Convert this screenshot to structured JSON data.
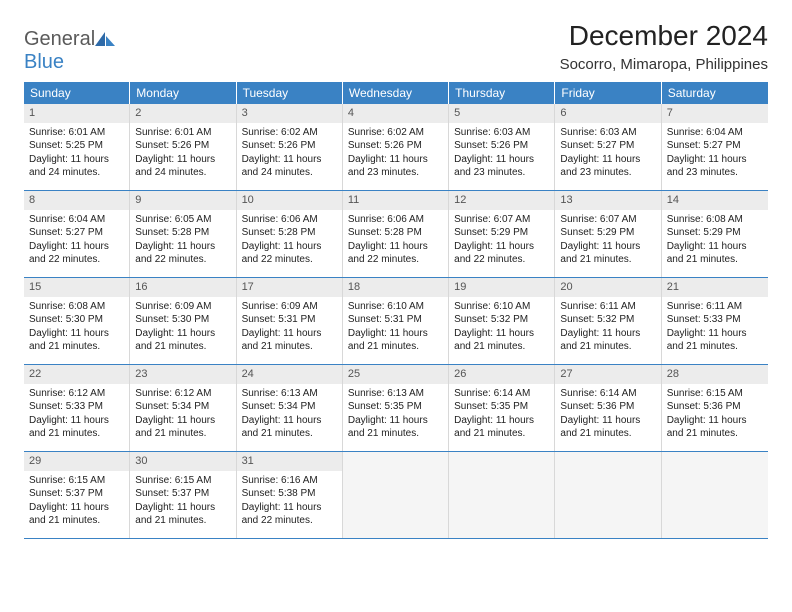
{
  "brand": {
    "general": "General",
    "blue": "Blue"
  },
  "title": "December 2024",
  "location": "Socorro, Mimaropa, Philippines",
  "header_bg": "#3a82c4",
  "weekdays": [
    "Sunday",
    "Monday",
    "Tuesday",
    "Wednesday",
    "Thursday",
    "Friday",
    "Saturday"
  ],
  "weeks": [
    [
      {
        "n": "1",
        "sr": "Sunrise: 6:01 AM",
        "ss": "Sunset: 5:25 PM",
        "dl": "Daylight: 11 hours and 24 minutes."
      },
      {
        "n": "2",
        "sr": "Sunrise: 6:01 AM",
        "ss": "Sunset: 5:26 PM",
        "dl": "Daylight: 11 hours and 24 minutes."
      },
      {
        "n": "3",
        "sr": "Sunrise: 6:02 AM",
        "ss": "Sunset: 5:26 PM",
        "dl": "Daylight: 11 hours and 24 minutes."
      },
      {
        "n": "4",
        "sr": "Sunrise: 6:02 AM",
        "ss": "Sunset: 5:26 PM",
        "dl": "Daylight: 11 hours and 23 minutes."
      },
      {
        "n": "5",
        "sr": "Sunrise: 6:03 AM",
        "ss": "Sunset: 5:26 PM",
        "dl": "Daylight: 11 hours and 23 minutes."
      },
      {
        "n": "6",
        "sr": "Sunrise: 6:03 AM",
        "ss": "Sunset: 5:27 PM",
        "dl": "Daylight: 11 hours and 23 minutes."
      },
      {
        "n": "7",
        "sr": "Sunrise: 6:04 AM",
        "ss": "Sunset: 5:27 PM",
        "dl": "Daylight: 11 hours and 23 minutes."
      }
    ],
    [
      {
        "n": "8",
        "sr": "Sunrise: 6:04 AM",
        "ss": "Sunset: 5:27 PM",
        "dl": "Daylight: 11 hours and 22 minutes."
      },
      {
        "n": "9",
        "sr": "Sunrise: 6:05 AM",
        "ss": "Sunset: 5:28 PM",
        "dl": "Daylight: 11 hours and 22 minutes."
      },
      {
        "n": "10",
        "sr": "Sunrise: 6:06 AM",
        "ss": "Sunset: 5:28 PM",
        "dl": "Daylight: 11 hours and 22 minutes."
      },
      {
        "n": "11",
        "sr": "Sunrise: 6:06 AM",
        "ss": "Sunset: 5:28 PM",
        "dl": "Daylight: 11 hours and 22 minutes."
      },
      {
        "n": "12",
        "sr": "Sunrise: 6:07 AM",
        "ss": "Sunset: 5:29 PM",
        "dl": "Daylight: 11 hours and 22 minutes."
      },
      {
        "n": "13",
        "sr": "Sunrise: 6:07 AM",
        "ss": "Sunset: 5:29 PM",
        "dl": "Daylight: 11 hours and 21 minutes."
      },
      {
        "n": "14",
        "sr": "Sunrise: 6:08 AM",
        "ss": "Sunset: 5:29 PM",
        "dl": "Daylight: 11 hours and 21 minutes."
      }
    ],
    [
      {
        "n": "15",
        "sr": "Sunrise: 6:08 AM",
        "ss": "Sunset: 5:30 PM",
        "dl": "Daylight: 11 hours and 21 minutes."
      },
      {
        "n": "16",
        "sr": "Sunrise: 6:09 AM",
        "ss": "Sunset: 5:30 PM",
        "dl": "Daylight: 11 hours and 21 minutes."
      },
      {
        "n": "17",
        "sr": "Sunrise: 6:09 AM",
        "ss": "Sunset: 5:31 PM",
        "dl": "Daylight: 11 hours and 21 minutes."
      },
      {
        "n": "18",
        "sr": "Sunrise: 6:10 AM",
        "ss": "Sunset: 5:31 PM",
        "dl": "Daylight: 11 hours and 21 minutes."
      },
      {
        "n": "19",
        "sr": "Sunrise: 6:10 AM",
        "ss": "Sunset: 5:32 PM",
        "dl": "Daylight: 11 hours and 21 minutes."
      },
      {
        "n": "20",
        "sr": "Sunrise: 6:11 AM",
        "ss": "Sunset: 5:32 PM",
        "dl": "Daylight: 11 hours and 21 minutes."
      },
      {
        "n": "21",
        "sr": "Sunrise: 6:11 AM",
        "ss": "Sunset: 5:33 PM",
        "dl": "Daylight: 11 hours and 21 minutes."
      }
    ],
    [
      {
        "n": "22",
        "sr": "Sunrise: 6:12 AM",
        "ss": "Sunset: 5:33 PM",
        "dl": "Daylight: 11 hours and 21 minutes."
      },
      {
        "n": "23",
        "sr": "Sunrise: 6:12 AM",
        "ss": "Sunset: 5:34 PM",
        "dl": "Daylight: 11 hours and 21 minutes."
      },
      {
        "n": "24",
        "sr": "Sunrise: 6:13 AM",
        "ss": "Sunset: 5:34 PM",
        "dl": "Daylight: 11 hours and 21 minutes."
      },
      {
        "n": "25",
        "sr": "Sunrise: 6:13 AM",
        "ss": "Sunset: 5:35 PM",
        "dl": "Daylight: 11 hours and 21 minutes."
      },
      {
        "n": "26",
        "sr": "Sunrise: 6:14 AM",
        "ss": "Sunset: 5:35 PM",
        "dl": "Daylight: 11 hours and 21 minutes."
      },
      {
        "n": "27",
        "sr": "Sunrise: 6:14 AM",
        "ss": "Sunset: 5:36 PM",
        "dl": "Daylight: 11 hours and 21 minutes."
      },
      {
        "n": "28",
        "sr": "Sunrise: 6:15 AM",
        "ss": "Sunset: 5:36 PM",
        "dl": "Daylight: 11 hours and 21 minutes."
      }
    ],
    [
      {
        "n": "29",
        "sr": "Sunrise: 6:15 AM",
        "ss": "Sunset: 5:37 PM",
        "dl": "Daylight: 11 hours and 21 minutes."
      },
      {
        "n": "30",
        "sr": "Sunrise: 6:15 AM",
        "ss": "Sunset: 5:37 PM",
        "dl": "Daylight: 11 hours and 21 minutes."
      },
      {
        "n": "31",
        "sr": "Sunrise: 6:16 AM",
        "ss": "Sunset: 5:38 PM",
        "dl": "Daylight: 11 hours and 22 minutes."
      },
      null,
      null,
      null,
      null
    ]
  ]
}
